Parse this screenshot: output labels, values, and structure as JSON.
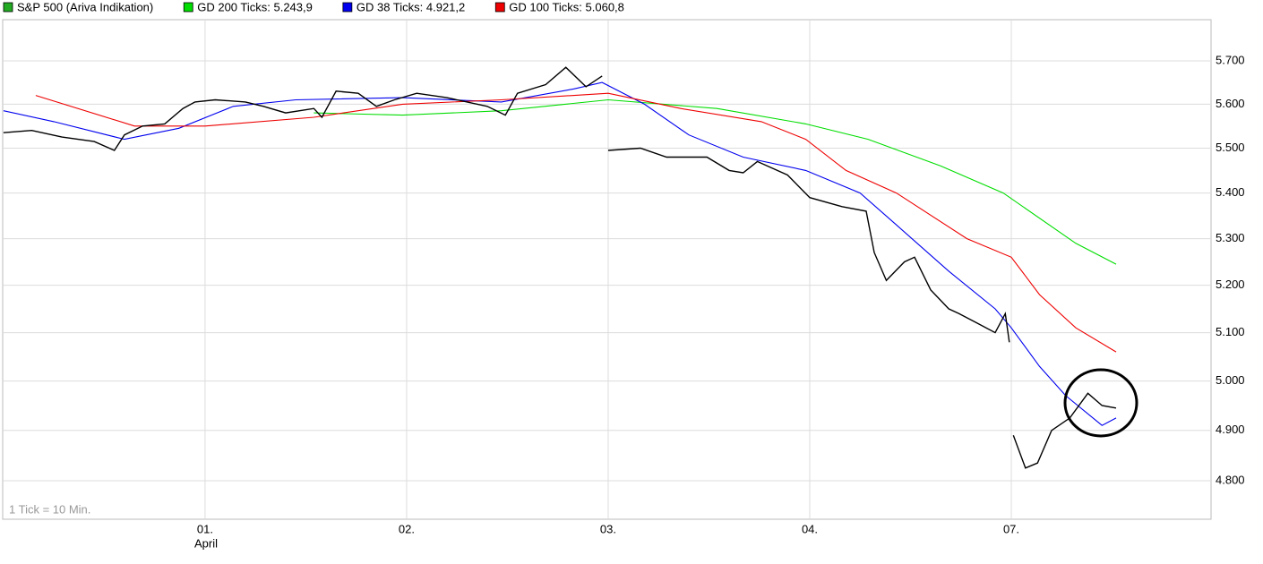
{
  "chart_data": {
    "type": "line",
    "log": true,
    "grid": true,
    "annotation": "1 Tick = 10 Min.",
    "x_sublabel": "April",
    "xlim": [
      -1.004,
      4.991
    ],
    "xticks": [
      {
        "value": 0,
        "label": "01."
      },
      {
        "value": 1,
        "label": "02."
      },
      {
        "value": 2,
        "label": "03."
      },
      {
        "value": 3,
        "label": "04."
      },
      {
        "value": 4,
        "label": "07."
      }
    ],
    "ylim": [
      4725,
      5797
    ],
    "yticks": [
      {
        "value": 4800,
        "label": "4.800"
      },
      {
        "value": 4900,
        "label": "4.900"
      },
      {
        "value": 5000,
        "label": "5.000"
      },
      {
        "value": 5100,
        "label": "5.100"
      },
      {
        "value": 5200,
        "label": "5.200"
      },
      {
        "value": 5300,
        "label": "5.300"
      },
      {
        "value": 5400,
        "label": "5.400"
      },
      {
        "value": 5500,
        "label": "5.500"
      },
      {
        "value": 5600,
        "label": "5.600"
      },
      {
        "value": 5700,
        "label": "5.700"
      }
    ],
    "series": [
      {
        "name": "S&P 500 (Ariva Indikation)",
        "color": "#000000",
        "x": [
          -1.0,
          -0.86,
          -0.71,
          -0.55,
          -0.45,
          -0.4,
          -0.31,
          -0.2,
          -0.11,
          -0.05,
          0.05,
          0.2,
          0.29,
          0.4,
          0.54,
          0.58,
          0.65,
          0.76,
          0.85,
          0.94,
          1.05,
          1.2,
          1.4,
          1.49,
          1.55,
          1.69,
          1.79,
          1.89,
          1.97,
          null,
          2.0,
          2.16,
          2.29,
          2.49,
          2.6,
          2.67,
          2.74,
          2.89,
          3.0,
          3.16,
          3.28,
          3.32,
          3.38,
          3.47,
          3.52,
          3.6,
          3.69,
          3.74,
          3.83,
          3.92,
          3.97,
          3.99,
          null,
          4.01,
          4.07,
          4.13,
          4.2,
          4.29,
          4.38,
          4.45,
          4.52
        ],
        "values": [
          5535,
          5540,
          5525,
          5515,
          5495,
          5530,
          5550,
          5555,
          5590,
          5605,
          5610,
          5605,
          5595,
          5580,
          5590,
          5570,
          5630,
          5625,
          5595,
          5610,
          5625,
          5615,
          5595,
          5575,
          5625,
          5645,
          5685,
          5640,
          5665,
          null,
          5495,
          5500,
          5480,
          5480,
          5450,
          5445,
          5470,
          5440,
          5390,
          5370,
          5360,
          5270,
          5210,
          5250,
          5260,
          5190,
          5150,
          5140,
          5120,
          5100,
          5140,
          5080,
          null,
          4890,
          4825,
          4835,
          4900,
          4925,
          4975,
          4950,
          4945
        ]
      },
      {
        "name": "GD 200 Ticks: 5.243,9",
        "color": "#00dd00",
        "x": [
          0.54,
          0.98,
          1.47,
          2.0,
          2.54,
          2.98,
          3.29,
          3.65,
          3.96,
          4.32,
          4.52
        ],
        "values": [
          5580,
          5575,
          5585,
          5610,
          5590,
          5555,
          5520,
          5460,
          5400,
          5290,
          5245
        ]
      },
      {
        "name": "GD 38 Ticks: 4.921,2",
        "color": "#0000ee",
        "x": [
          -1.0,
          -0.75,
          -0.4,
          -0.13,
          0.14,
          0.45,
          0.98,
          1.47,
          1.83,
          1.97,
          2.18,
          2.4,
          2.67,
          2.98,
          3.25,
          3.43,
          3.69,
          3.92,
          4.0,
          4.14,
          4.27,
          4.45,
          4.52
        ],
        "values": [
          5585,
          5560,
          5520,
          5545,
          5595,
          5610,
          5615,
          5605,
          5635,
          5650,
          5600,
          5530,
          5480,
          5450,
          5400,
          5330,
          5230,
          5150,
          5110,
          5030,
          4970,
          4910,
          4925
        ]
      },
      {
        "name": "GD 100 Ticks: 5.060,8",
        "color": "#ee0000",
        "x": [
          -0.84,
          -0.35,
          0.0,
          0.54,
          0.98,
          1.47,
          2.0,
          2.36,
          2.76,
          2.98,
          3.18,
          3.43,
          3.78,
          4.0,
          4.14,
          4.32,
          4.52
        ],
        "values": [
          5620,
          5550,
          5550,
          5570,
          5600,
          5610,
          5625,
          5590,
          5560,
          5520,
          5450,
          5400,
          5300,
          5260,
          5180,
          5110,
          5060
        ]
      }
    ]
  }
}
